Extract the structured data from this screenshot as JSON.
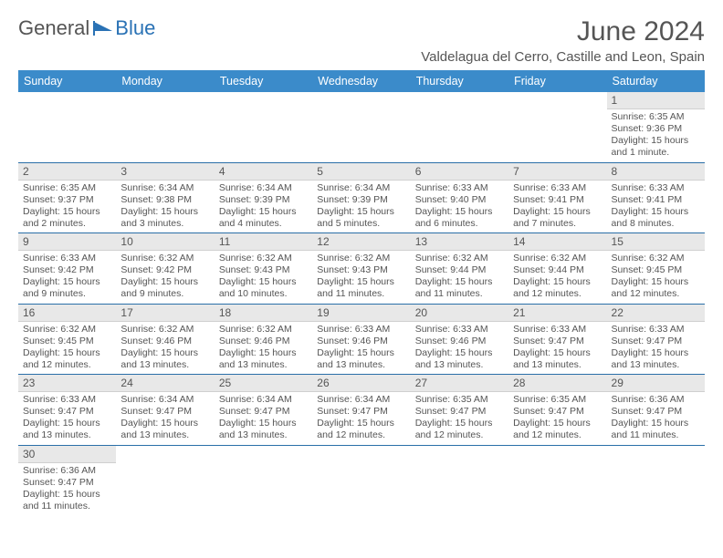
{
  "logo": {
    "text_general": "General",
    "text_blue": "Blue"
  },
  "title": "June 2024",
  "location": "Valdelagua del Cerro, Castille and Leon, Spain",
  "colors": {
    "header_bg": "#3b8bca",
    "header_text": "#ffffff",
    "daynum_bg": "#e8e8e8",
    "row_divider": "#2a6fa8",
    "text": "#555555",
    "logo_blue": "#2a72b5"
  },
  "weekdays": [
    "Sunday",
    "Monday",
    "Tuesday",
    "Wednesday",
    "Thursday",
    "Friday",
    "Saturday"
  ],
  "weeks": [
    [
      null,
      null,
      null,
      null,
      null,
      null,
      {
        "n": "1",
        "sunrise": "6:35 AM",
        "sunset": "9:36 PM",
        "daylight": "15 hours and 1 minute."
      }
    ],
    [
      {
        "n": "2",
        "sunrise": "6:35 AM",
        "sunset": "9:37 PM",
        "daylight": "15 hours and 2 minutes."
      },
      {
        "n": "3",
        "sunrise": "6:34 AM",
        "sunset": "9:38 PM",
        "daylight": "15 hours and 3 minutes."
      },
      {
        "n": "4",
        "sunrise": "6:34 AM",
        "sunset": "9:39 PM",
        "daylight": "15 hours and 4 minutes."
      },
      {
        "n": "5",
        "sunrise": "6:34 AM",
        "sunset": "9:39 PM",
        "daylight": "15 hours and 5 minutes."
      },
      {
        "n": "6",
        "sunrise": "6:33 AM",
        "sunset": "9:40 PM",
        "daylight": "15 hours and 6 minutes."
      },
      {
        "n": "7",
        "sunrise": "6:33 AM",
        "sunset": "9:41 PM",
        "daylight": "15 hours and 7 minutes."
      },
      {
        "n": "8",
        "sunrise": "6:33 AM",
        "sunset": "9:41 PM",
        "daylight": "15 hours and 8 minutes."
      }
    ],
    [
      {
        "n": "9",
        "sunrise": "6:33 AM",
        "sunset": "9:42 PM",
        "daylight": "15 hours and 9 minutes."
      },
      {
        "n": "10",
        "sunrise": "6:32 AM",
        "sunset": "9:42 PM",
        "daylight": "15 hours and 9 minutes."
      },
      {
        "n": "11",
        "sunrise": "6:32 AM",
        "sunset": "9:43 PM",
        "daylight": "15 hours and 10 minutes."
      },
      {
        "n": "12",
        "sunrise": "6:32 AM",
        "sunset": "9:43 PM",
        "daylight": "15 hours and 11 minutes."
      },
      {
        "n": "13",
        "sunrise": "6:32 AM",
        "sunset": "9:44 PM",
        "daylight": "15 hours and 11 minutes."
      },
      {
        "n": "14",
        "sunrise": "6:32 AM",
        "sunset": "9:44 PM",
        "daylight": "15 hours and 12 minutes."
      },
      {
        "n": "15",
        "sunrise": "6:32 AM",
        "sunset": "9:45 PM",
        "daylight": "15 hours and 12 minutes."
      }
    ],
    [
      {
        "n": "16",
        "sunrise": "6:32 AM",
        "sunset": "9:45 PM",
        "daylight": "15 hours and 12 minutes."
      },
      {
        "n": "17",
        "sunrise": "6:32 AM",
        "sunset": "9:46 PM",
        "daylight": "15 hours and 13 minutes."
      },
      {
        "n": "18",
        "sunrise": "6:32 AM",
        "sunset": "9:46 PM",
        "daylight": "15 hours and 13 minutes."
      },
      {
        "n": "19",
        "sunrise": "6:33 AM",
        "sunset": "9:46 PM",
        "daylight": "15 hours and 13 minutes."
      },
      {
        "n": "20",
        "sunrise": "6:33 AM",
        "sunset": "9:46 PM",
        "daylight": "15 hours and 13 minutes."
      },
      {
        "n": "21",
        "sunrise": "6:33 AM",
        "sunset": "9:47 PM",
        "daylight": "15 hours and 13 minutes."
      },
      {
        "n": "22",
        "sunrise": "6:33 AM",
        "sunset": "9:47 PM",
        "daylight": "15 hours and 13 minutes."
      }
    ],
    [
      {
        "n": "23",
        "sunrise": "6:33 AM",
        "sunset": "9:47 PM",
        "daylight": "15 hours and 13 minutes."
      },
      {
        "n": "24",
        "sunrise": "6:34 AM",
        "sunset": "9:47 PM",
        "daylight": "15 hours and 13 minutes."
      },
      {
        "n": "25",
        "sunrise": "6:34 AM",
        "sunset": "9:47 PM",
        "daylight": "15 hours and 13 minutes."
      },
      {
        "n": "26",
        "sunrise": "6:34 AM",
        "sunset": "9:47 PM",
        "daylight": "15 hours and 12 minutes."
      },
      {
        "n": "27",
        "sunrise": "6:35 AM",
        "sunset": "9:47 PM",
        "daylight": "15 hours and 12 minutes."
      },
      {
        "n": "28",
        "sunrise": "6:35 AM",
        "sunset": "9:47 PM",
        "daylight": "15 hours and 12 minutes."
      },
      {
        "n": "29",
        "sunrise": "6:36 AM",
        "sunset": "9:47 PM",
        "daylight": "15 hours and 11 minutes."
      }
    ],
    [
      {
        "n": "30",
        "sunrise": "6:36 AM",
        "sunset": "9:47 PM",
        "daylight": "15 hours and 11 minutes."
      },
      null,
      null,
      null,
      null,
      null,
      null
    ]
  ],
  "labels": {
    "sunrise": "Sunrise:",
    "sunset": "Sunset:",
    "daylight": "Daylight:"
  }
}
